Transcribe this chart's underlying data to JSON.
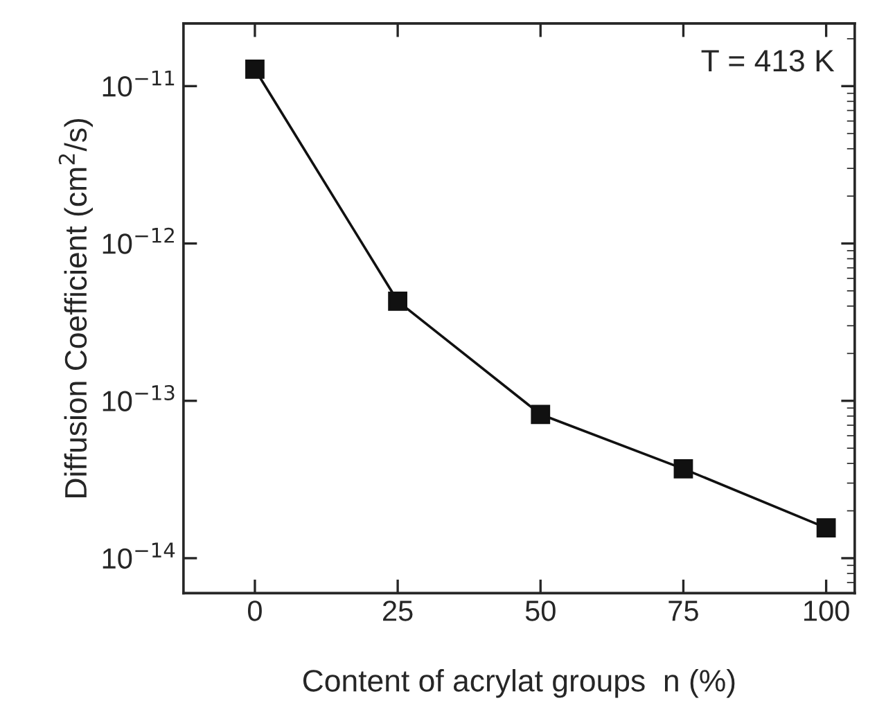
{
  "chart_data": {
    "type": "line",
    "xlabel": "Content of acrylat groups  n (%)",
    "ylabel": "Diffusion Coefficient (cm$^{2}$/s)",
    "x": [
      0,
      25,
      50,
      75,
      100
    ],
    "series": [
      {
        "color": "#111111",
        "values": [
          1.28e-11,
          4.3e-13,
          8.2e-14,
          3.7e-14,
          1.56e-14
        ]
      }
    ],
    "log": "y",
    "xlim": [
      -12.5,
      105
    ],
    "ylim": [
      6e-15,
      2.5e-11
    ],
    "xticks": [
      0,
      25,
      50,
      75,
      100
    ],
    "yticks": [
      {
        "value": 1e-14,
        "label": "10$^{−14}$"
      },
      {
        "value": 1e-13,
        "label": "10$^{−13}$"
      },
      {
        "value": 1e-12,
        "label": "10$^{−12}$"
      },
      {
        "value": 1e-11,
        "label": "10$^{−11}$"
      }
    ],
    "marker": "square",
    "line_style": "solid",
    "grid": false,
    "legend": false,
    "annotations": [
      "T = 413 K"
    ]
  }
}
